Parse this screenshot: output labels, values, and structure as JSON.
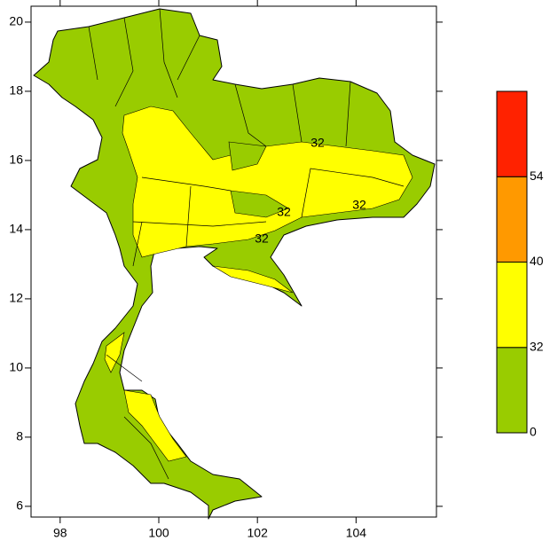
{
  "map": {
    "xlim": [
      97.41,
      105.63
    ],
    "ylim": [
      5.69,
      20.46
    ],
    "xticks": [
      98,
      100,
      102,
      104
    ],
    "yticks": [
      6,
      8,
      10,
      12,
      14,
      16,
      18,
      20
    ],
    "legend": {
      "bins": [
        0,
        32,
        40,
        54
      ],
      "colors": [
        "#99cc00",
        "#ffff00",
        "#ff9900",
        "#ff2200"
      ]
    },
    "contour_labels": [
      32,
      32,
      32,
      32
    ]
  }
}
